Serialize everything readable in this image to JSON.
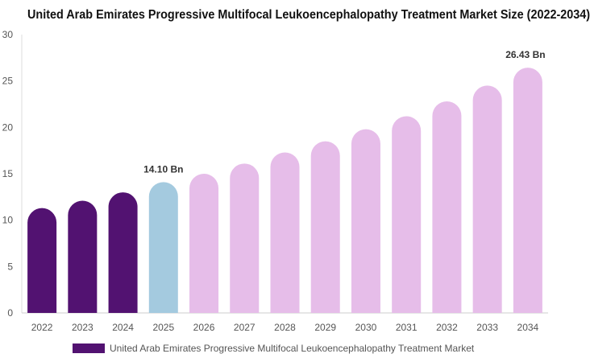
{
  "chart_data": {
    "type": "bar",
    "title": "United Arab Emirates Progressive Multifocal Leukoencephalopathy Treatment Market Size (2022-2034)",
    "categories": [
      "2022",
      "2023",
      "2024",
      "2025",
      "2026",
      "2027",
      "2028",
      "2029",
      "2030",
      "2031",
      "2032",
      "2033",
      "2034"
    ],
    "series": [
      {
        "name": "United Arab Emirates Progressive Multifocal Leukoencephalopathy Treatment Market",
        "values": [
          11.3,
          12.1,
          13.0,
          14.1,
          15.0,
          16.1,
          17.3,
          18.5,
          19.8,
          21.2,
          22.8,
          24.5,
          26.43
        ]
      }
    ],
    "bar_colors": [
      "#521271",
      "#521271",
      "#521271",
      "#a4cadf",
      "#e6bde9",
      "#e6bde9",
      "#e6bde9",
      "#e6bde9",
      "#e6bde9",
      "#e6bde9",
      "#e6bde9",
      "#e6bde9",
      "#e6bde9"
    ],
    "ylim": [
      0,
      30
    ],
    "yticks": [
      0,
      5,
      10,
      15,
      20,
      25,
      30
    ],
    "data_labels": [
      {
        "index": 3,
        "text": "14.10 Bn"
      },
      {
        "index": 12,
        "text": "26.43 Bn"
      }
    ],
    "legend_position": "bottom-left",
    "grid": false
  }
}
